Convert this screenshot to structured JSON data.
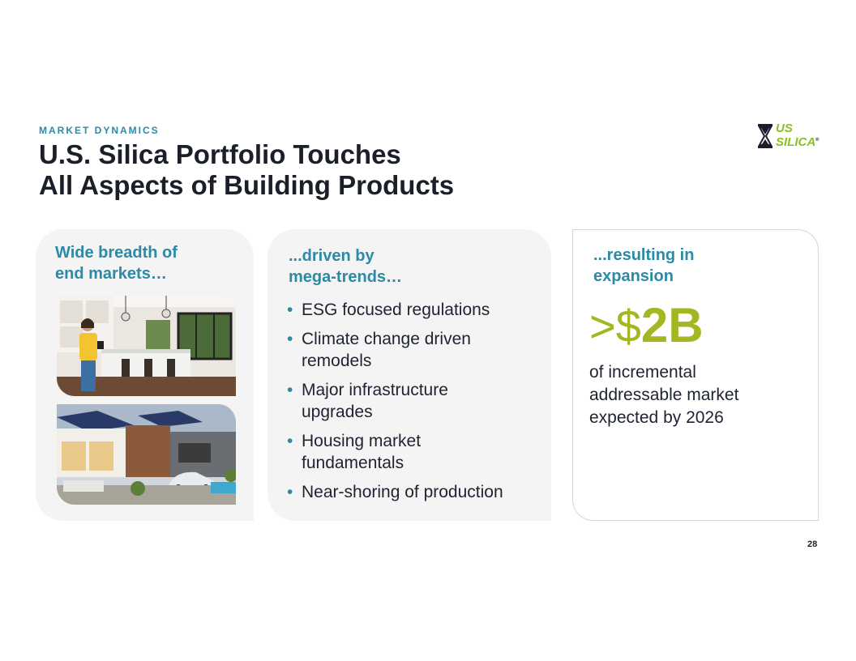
{
  "header": {
    "eyebrow": "MARKET DYNAMICS",
    "title_line1": "U.S. Silica Portfolio Touches",
    "title_line2": "All Aspects of Building Products"
  },
  "logo": {
    "line1": "US",
    "line2": "SILICA",
    "mark": "®",
    "icon": "hourglass-icon"
  },
  "panels": {
    "markets": {
      "heading_line1": "Wide breadth of",
      "heading_line2": "end markets…",
      "images": [
        "kitchen-photo",
        "modern-house-photo"
      ]
    },
    "trends": {
      "heading_line1": "...driven by",
      "heading_line2": "mega-trends…",
      "bullets": [
        {
          "line1": "ESG focused regulations",
          "line2": ""
        },
        {
          "line1": "Climate change driven",
          "line2": "remodels"
        },
        {
          "line1": "Major infrastructure",
          "line2": "upgrades"
        },
        {
          "line1": "Housing market",
          "line2": "fundamentals"
        },
        {
          "line1": "Near-shoring of production",
          "line2": ""
        }
      ]
    },
    "expansion": {
      "heading_line1": "...resulting in",
      "heading_line2": "expansion",
      "prefix": ">$",
      "value": "2B",
      "desc_line1": "of incremental",
      "desc_line2": "addressable market",
      "desc_line3": "expected by 2026"
    }
  },
  "page_number": "28",
  "colors": {
    "accent_blue": "#2b8aa6",
    "accent_green": "#a4b621",
    "logo_green": "#8cbf1f",
    "panel_bg": "#f4f4f5"
  }
}
